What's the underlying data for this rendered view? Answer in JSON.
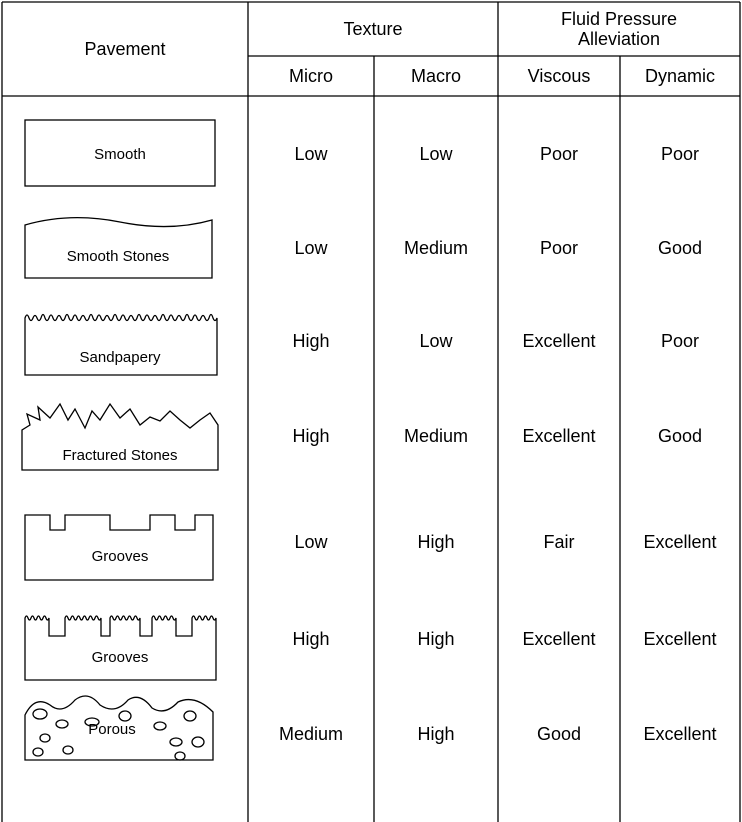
{
  "table": {
    "header": {
      "pavement": "Pavement",
      "texture": "Texture",
      "fluid_pressure": [
        "Fluid Pressure",
        "Alleviation"
      ],
      "columns": [
        "Micro",
        "Macro",
        "Viscous",
        "Dynamic"
      ]
    },
    "rows": [
      {
        "pavement": "Smooth",
        "values": [
          "Low",
          "Low",
          "Poor",
          "Poor"
        ]
      },
      {
        "pavement": "Smooth Stones",
        "values": [
          "Low",
          "Medium",
          "Poor",
          "Good"
        ]
      },
      {
        "pavement": "Sandpapery",
        "values": [
          "High",
          "Low",
          "Excellent",
          "Poor"
        ]
      },
      {
        "pavement": "Fractured Stones",
        "values": [
          "High",
          "Medium",
          "Excellent",
          "Good"
        ]
      },
      {
        "pavement": "Grooves",
        "values": [
          "Low",
          "High",
          "Fair",
          "Excellent"
        ]
      },
      {
        "pavement": "Grooves",
        "values": [
          "High",
          "High",
          "Excellent",
          "Excellent"
        ]
      },
      {
        "pavement": "Porous",
        "values": [
          "Medium",
          "High",
          "Good",
          "Excellent"
        ]
      }
    ]
  }
}
